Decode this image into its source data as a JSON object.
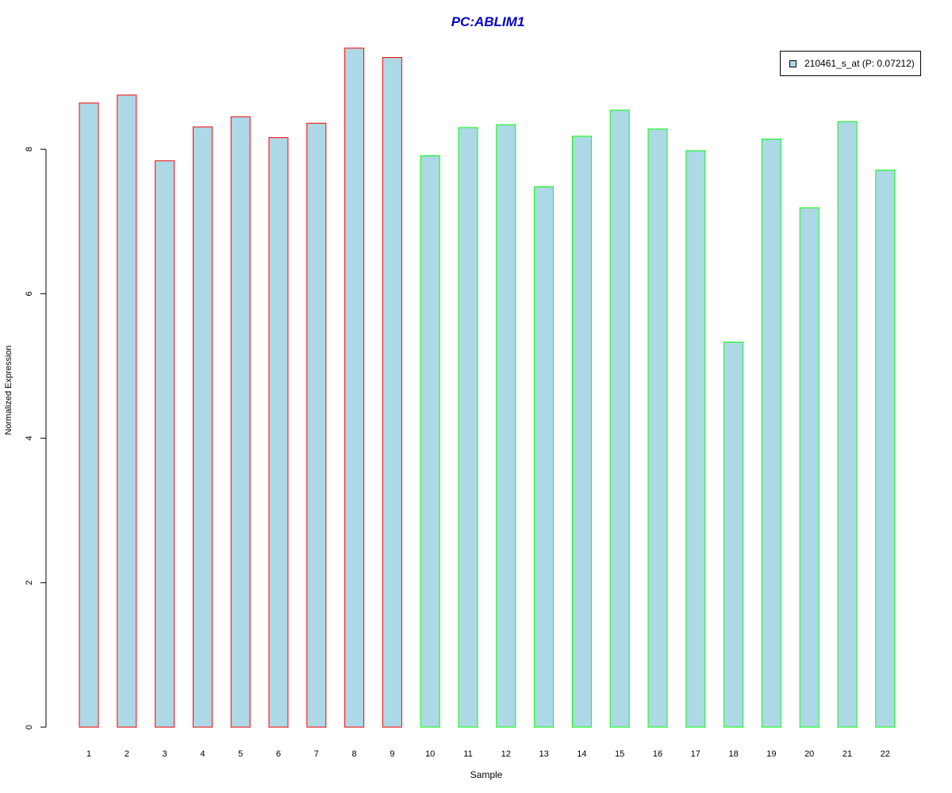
{
  "chart_data": {
    "type": "bar",
    "title": "PC:ABLIM1",
    "xlabel": "Sample",
    "ylabel": "Normalized Expression",
    "categories": [
      "1",
      "2",
      "3",
      "4",
      "5",
      "6",
      "7",
      "8",
      "9",
      "10",
      "11",
      "12",
      "13",
      "14",
      "15",
      "16",
      "17",
      "18",
      "19",
      "20",
      "21",
      "22"
    ],
    "values": [
      8.64,
      8.75,
      7.84,
      8.31,
      8.45,
      8.16,
      8.36,
      9.4,
      9.27,
      7.91,
      8.3,
      8.34,
      7.48,
      8.18,
      8.54,
      8.28,
      7.98,
      5.33,
      8.14,
      7.19,
      8.38,
      7.71
    ],
    "bar_border_colors": [
      "#FF0000",
      "#FF0000",
      "#FF0000",
      "#FF0000",
      "#FF0000",
      "#FF0000",
      "#FF0000",
      "#FF0000",
      "#FF0000",
      "#00FF00",
      "#00FF00",
      "#00FF00",
      "#00FF00",
      "#00FF00",
      "#00FF00",
      "#00FF00",
      "#00FF00",
      "#00FF00",
      "#00FF00",
      "#00FF00",
      "#00FF00",
      "#00FF00"
    ],
    "bar_fill_color": "#ADD8E6",
    "title_color": "#0000CD",
    "ylim": [
      0,
      9.4
    ],
    "y_ticks": [
      0,
      2,
      4,
      6,
      8
    ],
    "grid": false,
    "legend": {
      "position": "top-right",
      "entries": [
        {
          "label": "210461_s_at (P: 0.07212)",
          "color": "#ADD8E6"
        }
      ]
    }
  }
}
